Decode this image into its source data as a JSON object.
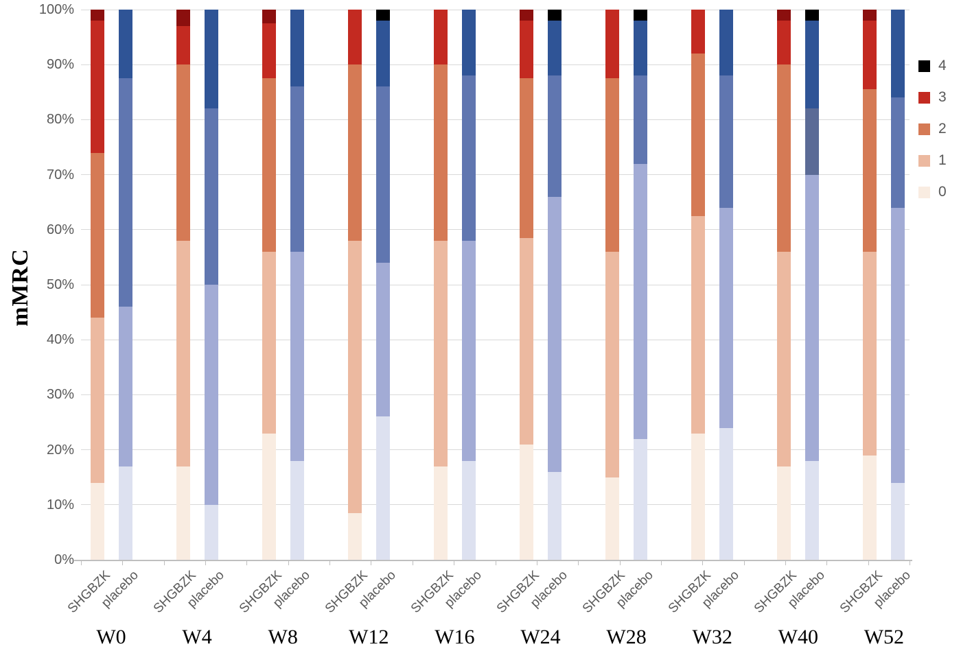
{
  "page": {
    "background": "#ffffff"
  },
  "chart_data": {
    "type": "bar",
    "variant": "stacked-100-percent",
    "title": "",
    "ylabel": "mMRC",
    "xlabel": "",
    "ylim": [
      0,
      100
    ],
    "ytick_step": 10,
    "ytick_labels": [
      "0%",
      "10%",
      "20%",
      "30%",
      "40%",
      "50%",
      "60%",
      "70%",
      "80%",
      "90%",
      "100%"
    ],
    "grid": true,
    "gridline_color": "#d9d9d9",
    "axis_color": "#bfbfbf",
    "tick_label_color": "#595959",
    "categories": [
      "W0",
      "W4",
      "W8",
      "W12",
      "W16",
      "W24",
      "W28",
      "W32",
      "W40",
      "W52"
    ],
    "group_labels": [
      "SHGBZK",
      "placebo"
    ],
    "segment_names": [
      "0",
      "1",
      "2",
      "3",
      "4"
    ],
    "palette": {
      "SHGBZK": [
        "#f9ece1",
        "#ecb9a0",
        "#d57a55",
        "#c32a21",
        "#8b0f0e"
      ],
      "placebo": [
        "#dde1f0",
        "#a2abd5",
        "#6076b0",
        "#2f5496",
        "#000000"
      ]
    },
    "legend": {
      "position": "right",
      "entries": [
        {
          "label": "4",
          "color": "#000000"
        },
        {
          "label": "3",
          "color": "#c32a21"
        },
        {
          "label": "2",
          "color": "#d57a55"
        },
        {
          "label": "1",
          "color": "#ecb9a0"
        },
        {
          "label": "0",
          "color": "#f9ece1"
        }
      ]
    },
    "series": [
      {
        "week": "W0",
        "SHGBZK": [
          14,
          30,
          30,
          24,
          2
        ],
        "placebo": [
          17,
          29,
          41.5,
          12.5,
          0
        ]
      },
      {
        "week": "W4",
        "SHGBZK": [
          17,
          41,
          32,
          7,
          3
        ],
        "placebo": [
          10,
          40,
          32,
          18,
          0
        ]
      },
      {
        "week": "W8",
        "SHGBZK": [
          23,
          33,
          31.5,
          10,
          2.5
        ],
        "placebo": [
          18,
          38,
          30,
          14,
          0
        ]
      },
      {
        "week": "W12",
        "SHGBZK": [
          8.5,
          49.5,
          32,
          10,
          0
        ],
        "placebo": [
          26,
          28,
          32,
          12,
          2
        ]
      },
      {
        "week": "W16",
        "SHGBZK": [
          17,
          41,
          32,
          10,
          0
        ],
        "placebo": [
          18,
          40,
          30,
          12,
          0
        ]
      },
      {
        "week": "W24",
        "SHGBZK": [
          21,
          37.5,
          29,
          10.5,
          2
        ],
        "placebo": [
          16,
          50,
          22,
          10,
          2
        ]
      },
      {
        "week": "W28",
        "SHGBZK": [
          15,
          41,
          31.5,
          12.5,
          0
        ],
        "placebo": [
          22,
          50,
          16,
          10,
          2
        ]
      },
      {
        "week": "W32",
        "SHGBZK": [
          23,
          39.5,
          29.5,
          8,
          0
        ],
        "placebo": [
          24,
          40,
          24,
          12,
          0
        ]
      },
      {
        "week": "W40",
        "SHGBZK": [
          17,
          39,
          34,
          8,
          2
        ],
        "placebo": [
          18,
          52,
          12,
          16,
          2
        ]
      },
      {
        "week": "W52",
        "SHGBZK": [
          19,
          37,
          29.5,
          12.5,
          2
        ],
        "placebo": [
          14,
          50,
          20,
          16,
          0
        ]
      }
    ],
    "color_overrides": [
      {
        "week": "W40",
        "group": "placebo",
        "segment_index": 2,
        "color": "#5b6b96"
      }
    ]
  }
}
